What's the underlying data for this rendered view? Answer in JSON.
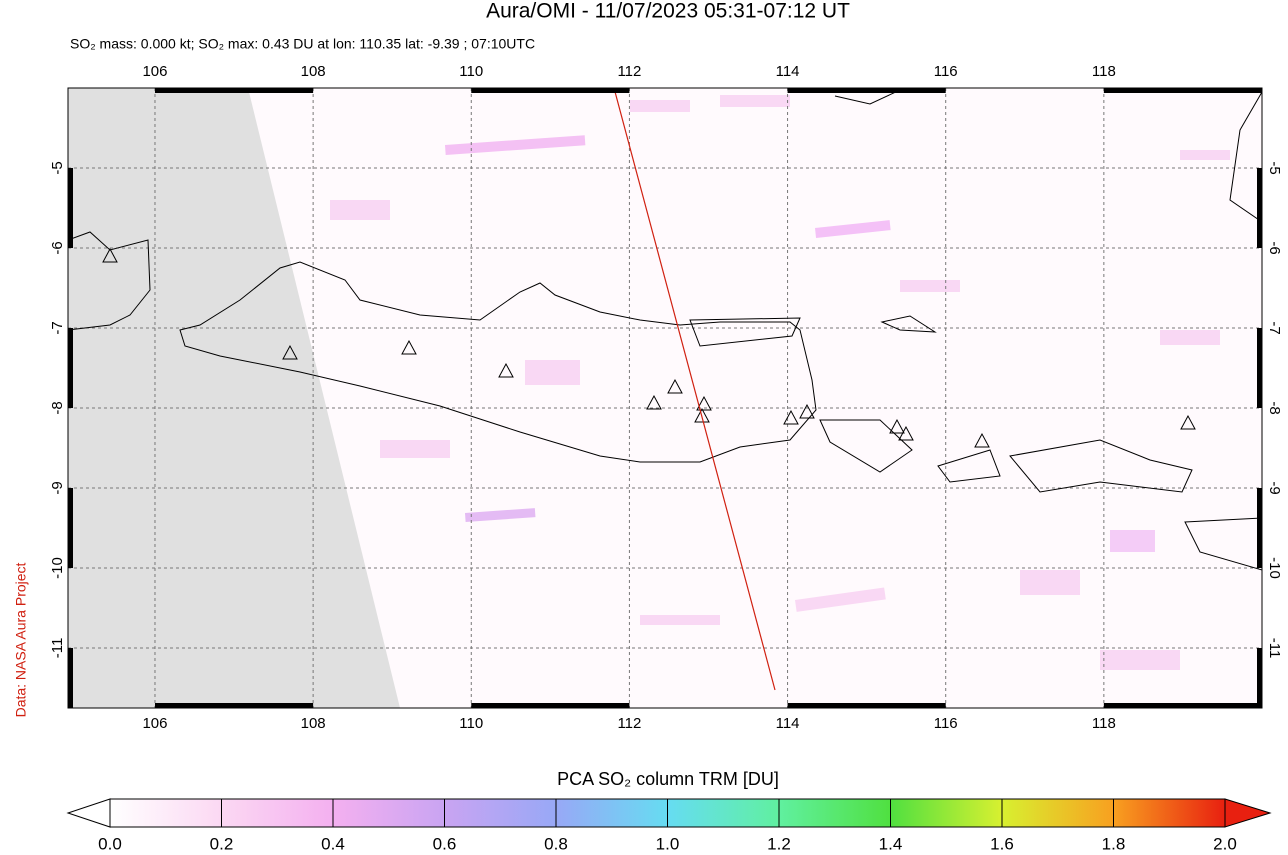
{
  "title": "Aura/OMI - 11/07/2023 05:31-07:12 UT",
  "subtitle": "SO₂ mass: 0.000 kt; SO₂ max: 0.43 DU at lon: 110.35 lat: -9.39 ; 07:10UTC",
  "credit": "Data: NASA Aura Project",
  "map": {
    "lonlim": [
      104.9,
      120
    ],
    "latlim": [
      -11.75,
      -4
    ],
    "lon_ticks": [
      106,
      108,
      110,
      112,
      114,
      116,
      118
    ],
    "lat_ticks": [
      -5,
      -6,
      -7,
      -8,
      -9,
      -10,
      -11
    ]
  },
  "colorbar": {
    "label": "PCA SO₂ column TRM [DU]",
    "lim": [
      0,
      2
    ],
    "ticks": [
      {
        "value": 0,
        "label": "0.0"
      },
      {
        "value": 0.2,
        "label": "0.2"
      },
      {
        "value": 0.4,
        "label": "0.4"
      },
      {
        "value": 0.6,
        "label": "0.6"
      },
      {
        "value": 0.8,
        "label": "0.8"
      },
      {
        "value": 1,
        "label": "1.0"
      },
      {
        "value": 1.2,
        "label": "1.2"
      },
      {
        "value": 1.4,
        "label": "1.4"
      },
      {
        "value": 1.6,
        "label": "1.6"
      },
      {
        "value": 1.8,
        "label": "1.8"
      },
      {
        "value": 2,
        "label": "2.0"
      }
    ]
  }
}
